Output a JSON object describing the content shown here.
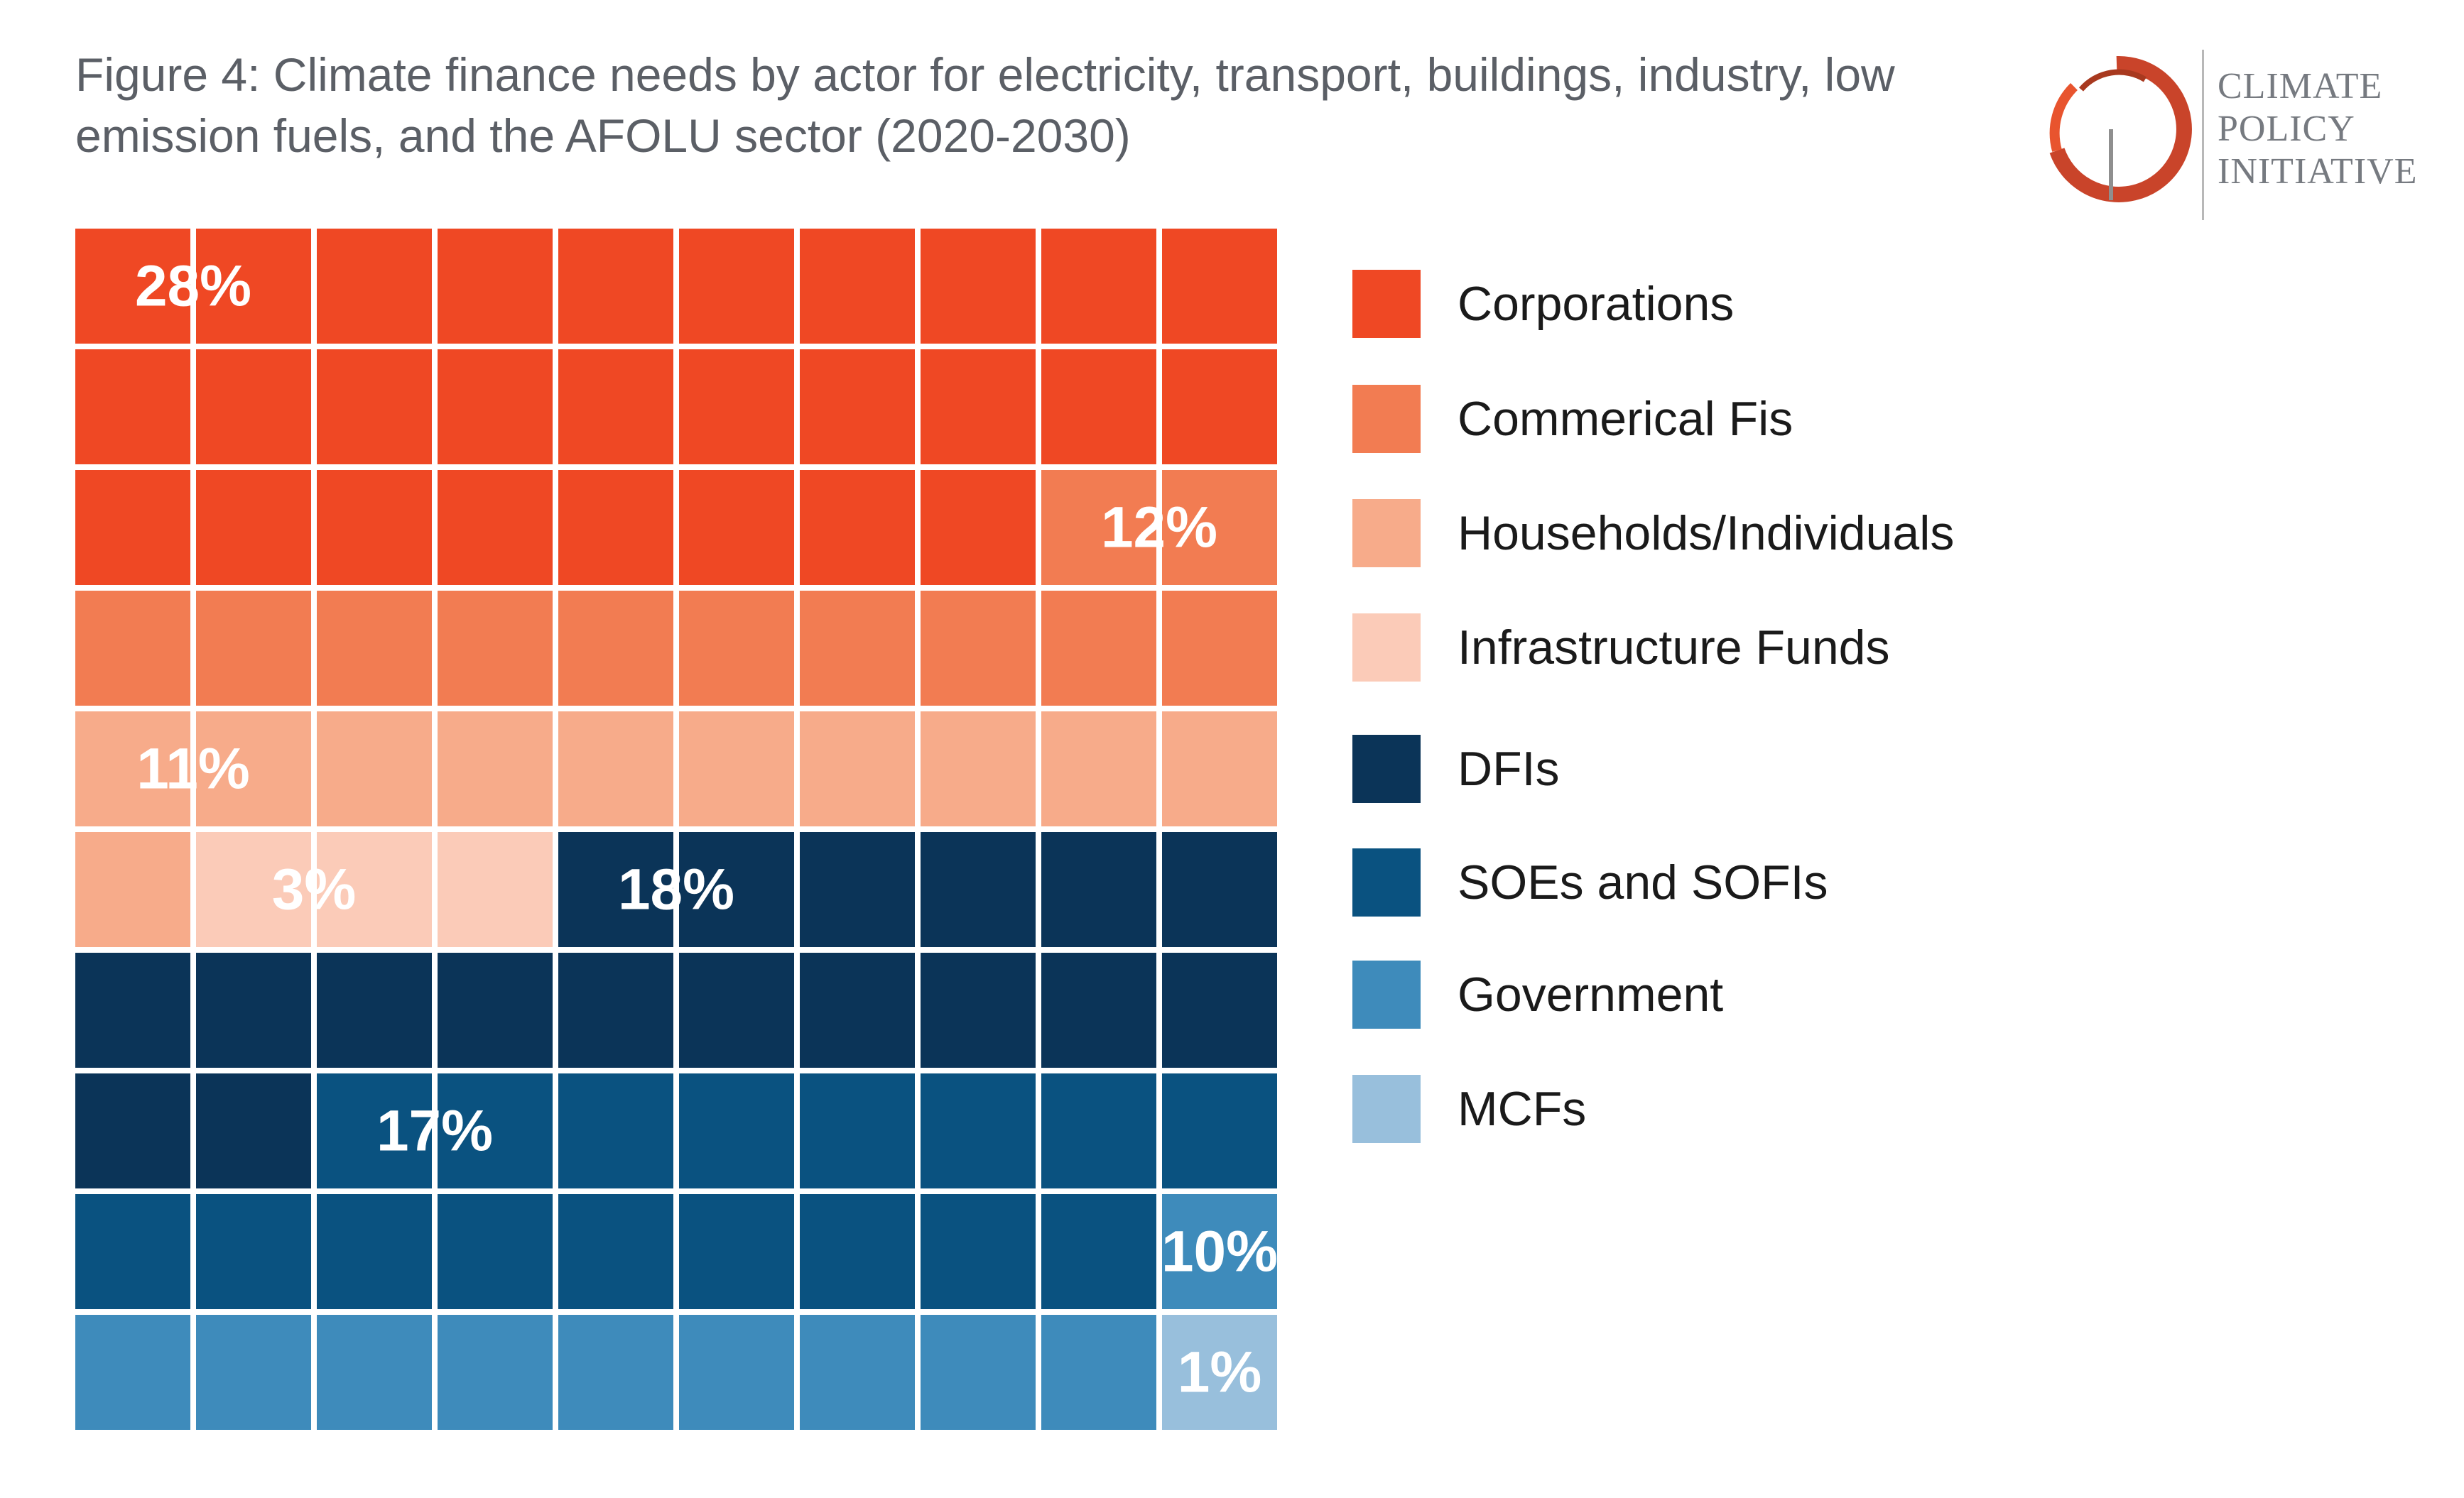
{
  "title": "Figure 4: Climate finance needs by actor for electricity, transport, buildings, industry, low emission fuels, and the AFOLU sector (2020-2030)",
  "logo": {
    "lines": [
      "CLIMATE",
      "POLICY",
      "INITIATIVE"
    ],
    "colors": [
      "#c9442a",
      "#e8542e",
      "#a8391f"
    ]
  },
  "chart_data": {
    "type": "waffle",
    "grid": {
      "rows": 10,
      "cols": 10
    },
    "unit": "%",
    "categories": [
      {
        "name": "Corporations",
        "value": 28,
        "label": "28%",
        "color": "#ef4824"
      },
      {
        "name": "Commerical Fis",
        "value": 12,
        "label": "12%",
        "color": "#f27c52"
      },
      {
        "name": "Households/Individuals",
        "value": 11,
        "label": "11%",
        "color": "#f7ab8a"
      },
      {
        "name": "Infrastructure Funds",
        "value": 3,
        "label": "3%",
        "color": "#fbcbb8"
      },
      {
        "name": "DFIs",
        "value": 18,
        "label": "18%",
        "color": "#0b3458"
      },
      {
        "name": "SOEs and SOFIs",
        "value": 17,
        "label": "17%",
        "color": "#0a5280"
      },
      {
        "name": "Government",
        "value": 10,
        "label": "10%",
        "color": "#3e8bbb"
      },
      {
        "name": "MCFs",
        "value": 1,
        "label": "1%",
        "color": "#98bfdc"
      }
    ],
    "legend_position": "right"
  }
}
